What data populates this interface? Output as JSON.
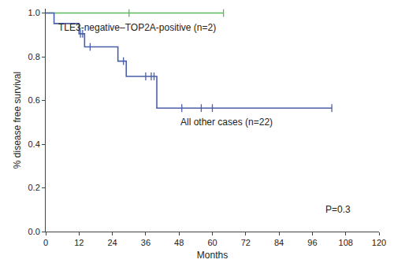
{
  "chart_data": {
    "type": "line",
    "x_label": "Months",
    "y_label": "% disease free survival",
    "xlim": [
      0,
      120
    ],
    "xticks": [
      0,
      12,
      24,
      36,
      48,
      60,
      72,
      84,
      96,
      108,
      120
    ],
    "ylim": [
      0,
      1.02
    ],
    "yticks": [
      {
        "value": 0,
        "label": "0.0"
      },
      {
        "value": 0.2,
        "label": "0.2"
      },
      {
        "value": 0.4,
        "label": "0.4"
      },
      {
        "value": 0.6,
        "label": "0.6"
      },
      {
        "value": 0.8,
        "label": "0.8"
      },
      {
        "value": 1,
        "label": "1.0"
      }
    ],
    "grid": false,
    "series": [
      {
        "name": "TLE3-negative–TOP2A-positive (n=2)",
        "color": "#5cb85c",
        "line_style": "step",
        "x": [
          0,
          64
        ],
        "values": [
          1,
          1
        ],
        "censored": {
          "x": [
            30,
            64
          ],
          "values": [
            1,
            1
          ]
        }
      },
      {
        "name": "All other cases (n=22)",
        "color": "#4a5fa8",
        "line_style": "step",
        "x": [
          0,
          3,
          12,
          14,
          26,
          29,
          40,
          103
        ],
        "values": [
          1,
          0.952,
          0.905,
          0.845,
          0.78,
          0.71,
          0.565,
          0.565
        ],
        "censored": {
          "x": [
            12.5,
            13.3,
            16,
            28,
            36,
            38,
            39,
            49,
            56,
            60,
            103
          ],
          "values": [
            0.905,
            0.905,
            0.845,
            0.78,
            0.71,
            0.71,
            0.71,
            0.565,
            0.565,
            0.565,
            0.565
          ]
        }
      }
    ],
    "annotations": [
      {
        "text": "TLE3-negative–TOP2A-positive (n=2)",
        "x": 4,
        "y": 0.935
      },
      {
        "text": "All other cases (n=22)",
        "x": 48,
        "y": 0.5
      },
      {
        "text": "P=0.3",
        "x": 100,
        "y": 0.1
      }
    ]
  }
}
